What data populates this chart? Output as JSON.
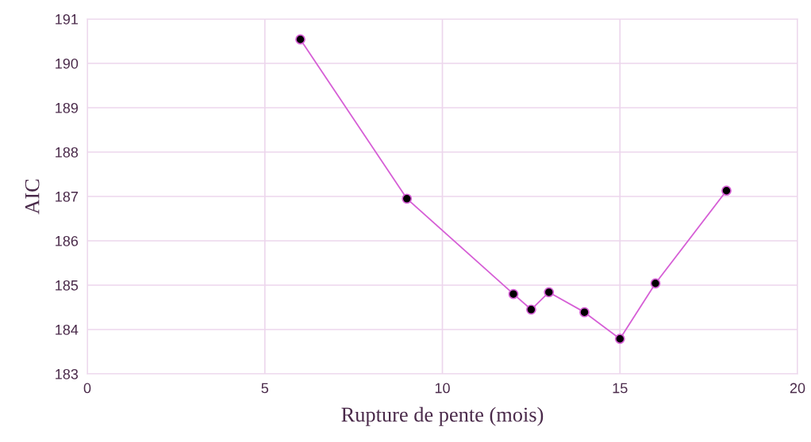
{
  "chart_data": {
    "type": "line",
    "xlabel": "Rupture de pente (mois)",
    "ylabel": "AIC",
    "x": [
      6,
      9,
      12,
      12.5,
      13,
      14,
      15,
      16,
      18
    ],
    "series": [
      {
        "color": "#d65fd6",
        "values": [
          190.54,
          186.95,
          184.8,
          184.45,
          184.84,
          184.39,
          183.79,
          185.04,
          187.13
        ]
      }
    ],
    "xlim": [
      0,
      20
    ],
    "xticks": [
      0,
      5,
      10,
      15,
      20
    ],
    "ylim": [
      183,
      191
    ],
    "yticks": [
      183,
      184,
      185,
      186,
      187,
      188,
      189,
      190,
      191
    ],
    "grid": true,
    "marker": "circle",
    "line_style": "solid"
  }
}
